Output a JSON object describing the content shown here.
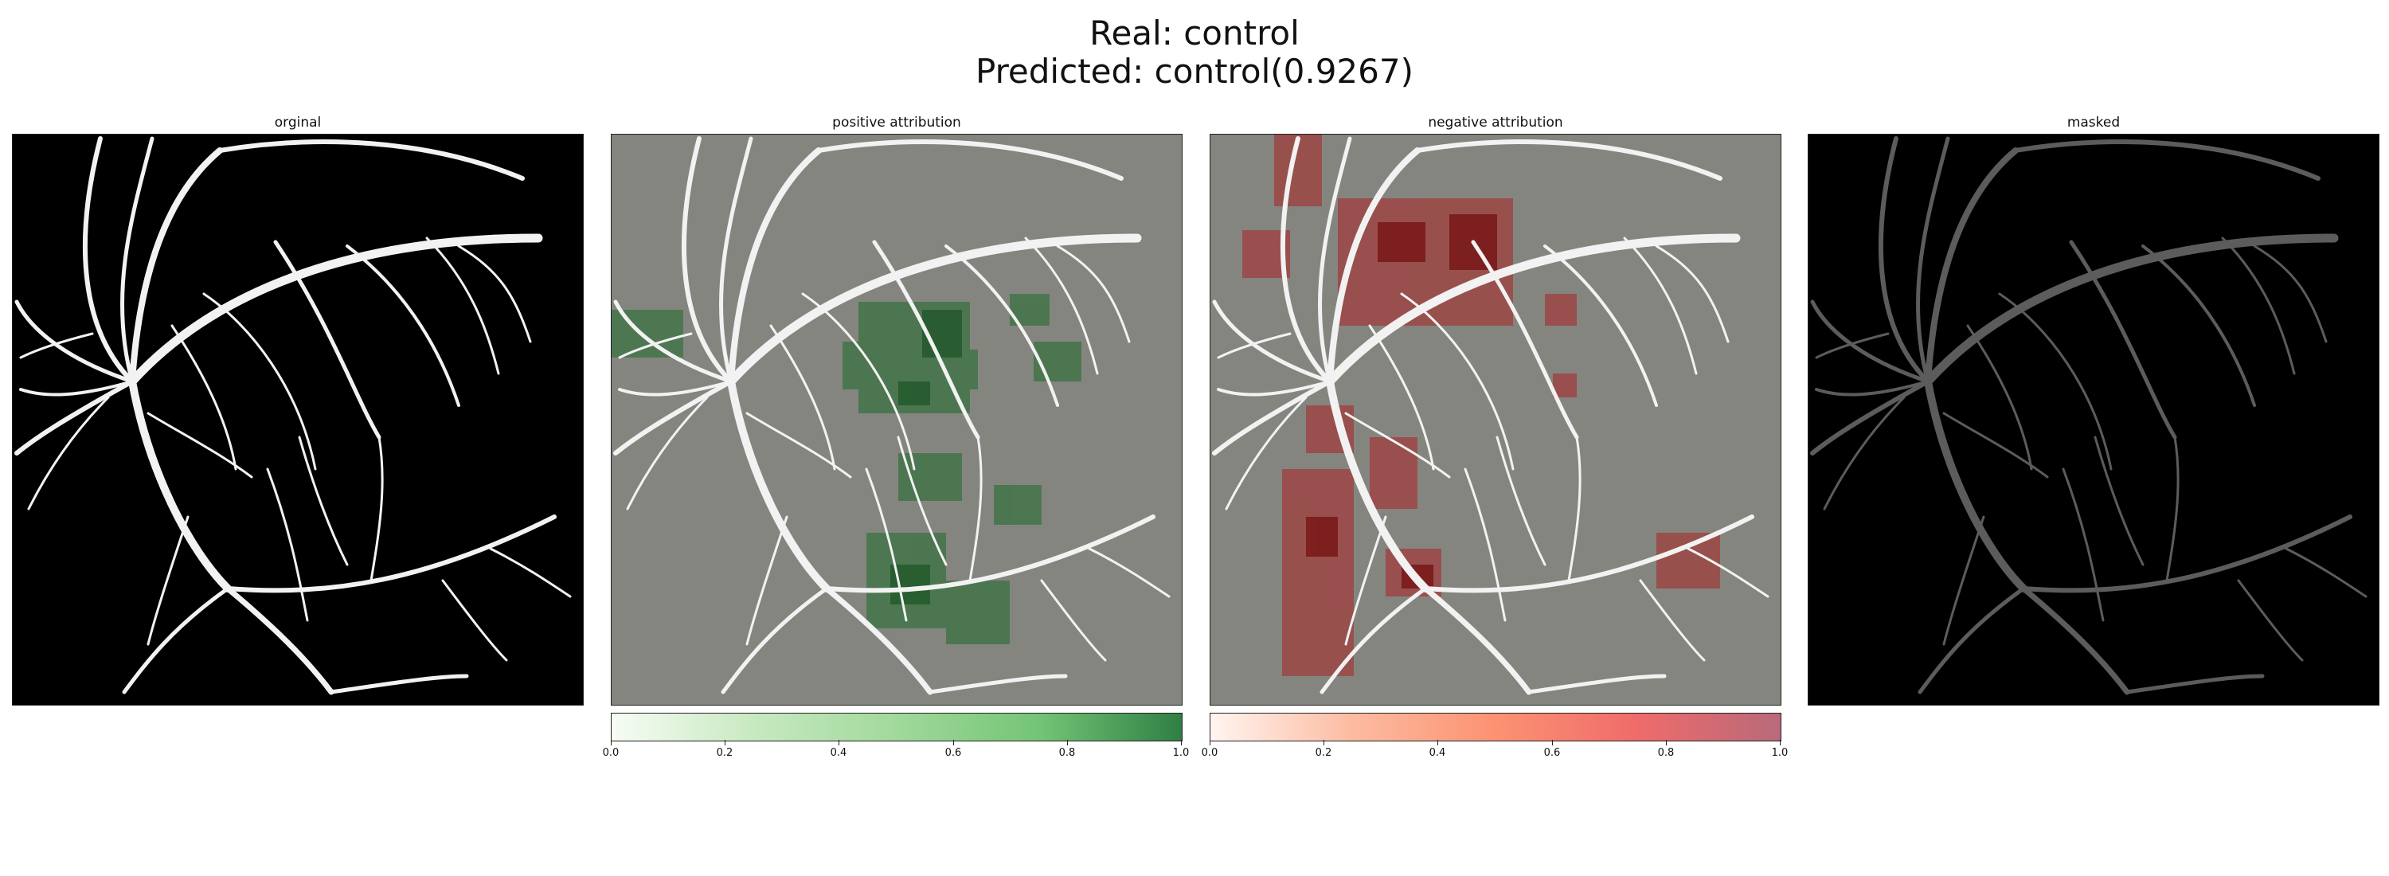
{
  "figure": {
    "title_real": "Real: control",
    "title_pred": "Predicted: control(0.9267)"
  },
  "panels": [
    {
      "title": "orginal"
    },
    {
      "title": "positive attribution"
    },
    {
      "title": "negative attribution"
    },
    {
      "title": "masked"
    }
  ],
  "colorbars": [
    {
      "name": "positive",
      "ticks": [
        "0.0",
        "0.2",
        "0.4",
        "0.6",
        "0.8",
        "1.0"
      ],
      "colors": [
        "#f7fcf5",
        "#2f7f45"
      ]
    },
    {
      "name": "negative",
      "ticks": [
        "0.0",
        "0.2",
        "0.4",
        "0.6",
        "0.8",
        "1.0"
      ],
      "colors": [
        "#fff5f0",
        "#99000d"
      ]
    }
  ]
}
